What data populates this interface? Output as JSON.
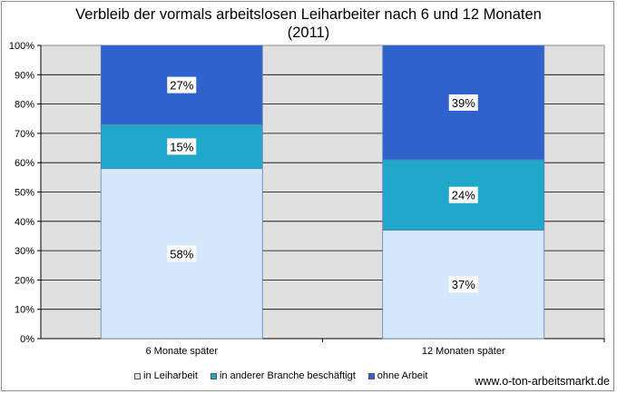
{
  "chart_data": {
    "type": "bar",
    "stacked": true,
    "title_line1": "Verbleib der vormals arbeitslosen Leiharbeiter nach 6 und 12 Monaten",
    "title_line2": "(2011)",
    "categories": [
      "6 Monate später",
      "12 Monaten später"
    ],
    "series": [
      {
        "name": "in Leiharbeit",
        "values": [
          58,
          37
        ],
        "color": "#d6e8fb",
        "label_values": [
          "58%",
          "37%"
        ]
      },
      {
        "name": "in anderer Branche beschäftigt",
        "values": [
          15,
          24
        ],
        "color": "#1fa8c9",
        "label_values": [
          "15%",
          "24%"
        ]
      },
      {
        "name": "ohne Arbeit",
        "values": [
          27,
          39
        ],
        "color": "#2f62cc",
        "label_values": [
          "27%",
          "39%"
        ]
      }
    ],
    "ylim": [
      0,
      100
    ],
    "yticks": [
      "0%",
      "10%",
      "20%",
      "30%",
      "40%",
      "50%",
      "60%",
      "70%",
      "80%",
      "90%",
      "100%"
    ],
    "grid": true,
    "plot_background": "#e0e0e0",
    "legend_position": "bottom"
  },
  "source": "www.o-ton-arbeitsmarkt.de"
}
